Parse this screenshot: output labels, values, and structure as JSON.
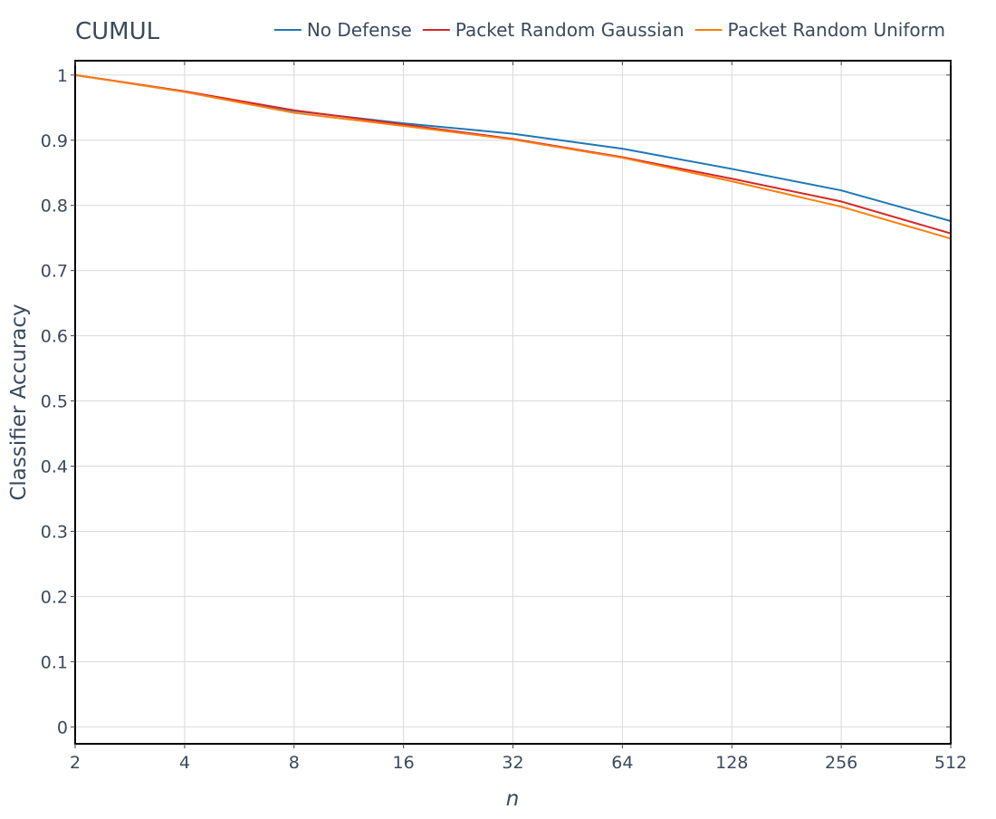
{
  "chart_data": {
    "type": "line",
    "title": "CUMUL",
    "xlabel": "n",
    "ylabel": "Classifier Accuracy",
    "x": [
      2,
      4,
      8,
      16,
      32,
      64,
      128,
      256,
      512
    ],
    "x_tick_labels": [
      "2",
      "4",
      "8",
      "16",
      "32",
      "64",
      "128",
      "256",
      "512"
    ],
    "x_scale": "log2",
    "xlim": [
      2,
      512
    ],
    "ylim": [
      -0.026,
      1.022
    ],
    "y_ticks": [
      0,
      0.1,
      0.2,
      0.3,
      0.4,
      0.5,
      0.6,
      0.7,
      0.8,
      0.9,
      1
    ],
    "y_tick_labels": [
      "0",
      "0.1",
      "0.2",
      "0.3",
      "0.4",
      "0.5",
      "0.6",
      "0.7",
      "0.8",
      "0.9",
      "1"
    ],
    "grid": true,
    "legend_position": "top-right",
    "series": [
      {
        "name": "No Defense",
        "color": "#1f77b4",
        "values": [
          1.0,
          0.975,
          0.945,
          0.926,
          0.91,
          0.887,
          0.856,
          0.823,
          0.776
        ]
      },
      {
        "name": "Packet Random Gaussian",
        "color": "#d62728",
        "values": [
          1.0,
          0.975,
          0.946,
          0.924,
          0.902,
          0.874,
          0.841,
          0.806,
          0.757
        ]
      },
      {
        "name": "Packet Random Uniform",
        "color": "#ff7f0e",
        "values": [
          1.0,
          0.974,
          0.942,
          0.922,
          0.901,
          0.873,
          0.837,
          0.798,
          0.749
        ]
      }
    ]
  }
}
